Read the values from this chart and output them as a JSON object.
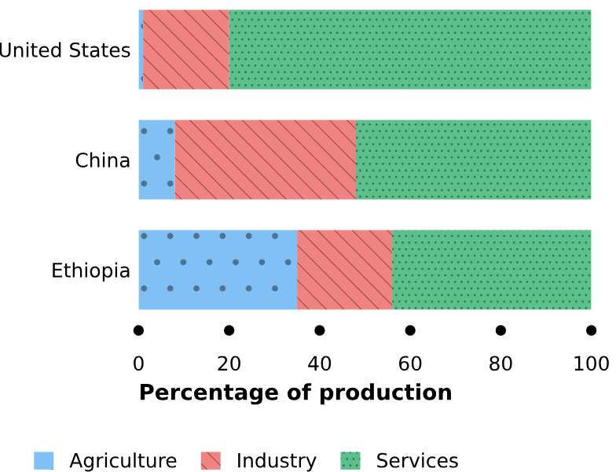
{
  "chart_data": {
    "type": "bar",
    "orientation": "horizontal",
    "stacked": true,
    "categories": [
      "United States",
      "China",
      "Ethiopia"
    ],
    "series": [
      {
        "name": "Agriculture",
        "color": "#80c0f4",
        "values": [
          1,
          8,
          35
        ]
      },
      {
        "name": "Industry",
        "color": "#f08282",
        "values": [
          19,
          40,
          21
        ]
      },
      {
        "name": "Services",
        "color": "#5cc08c",
        "values": [
          80,
          52,
          44
        ]
      }
    ],
    "xlabel": "Percentage of production",
    "xlim": [
      0,
      100
    ],
    "xticks": [
      0,
      20,
      40,
      60,
      80,
      100
    ],
    "grid": false,
    "legend": "bottom"
  }
}
